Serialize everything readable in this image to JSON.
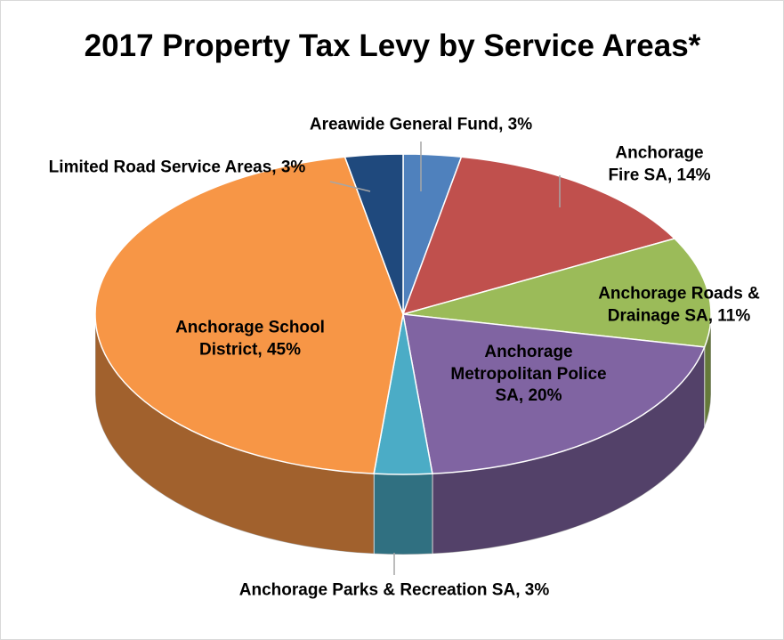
{
  "chart_data": {
    "type": "pie3d",
    "title": "2017 Property Tax Levy by Service Areas*",
    "values": [
      3,
      14,
      11,
      20,
      3,
      45,
      3
    ],
    "value_labels": [
      "Areawide General Fund, 3%",
      "Anchorage Fire SA, 14%",
      "Anchorage Roads & Drainage SA, 11%",
      "Anchorage Metropolitan Police SA, 20%",
      "Anchorage Parks & Recreation SA, 3%",
      "Anchorage School District, 45%",
      "Limited Road Service Areas, 3%"
    ],
    "colors": [
      "#4f81bd",
      "#c0504d",
      "#9bbb59",
      "#8064a2",
      "#4bacc6",
      "#f79646",
      "#1f497d"
    ]
  }
}
